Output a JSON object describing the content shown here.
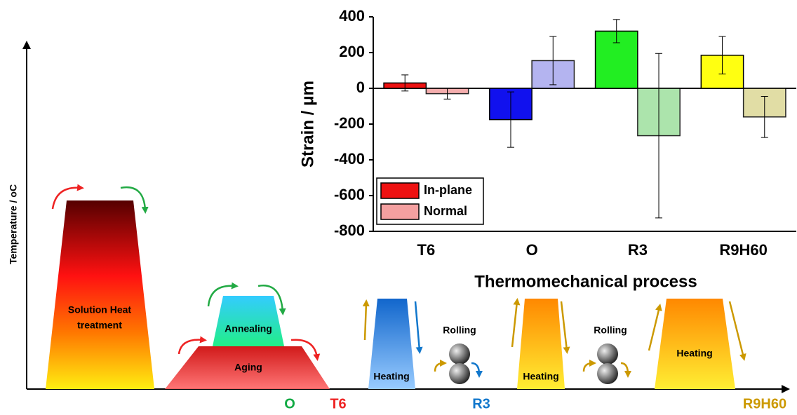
{
  "chart_data": {
    "type": "bar",
    "categories": [
      "T6",
      "O",
      "R3",
      "R9H60"
    ],
    "series": [
      {
        "name": "In-plane",
        "color": "#ee1111",
        "colors": [
          "#ee1111",
          "#1111ee",
          "#22ee22",
          "#ffff11"
        ],
        "values": [
          30,
          -175,
          320,
          185
        ],
        "errors": [
          45,
          155,
          65,
          105
        ]
      },
      {
        "name": "Normal",
        "color": "#f4a0a0",
        "colors": [
          "#f4a0a0",
          "#a8a8ee",
          "#9ee09e",
          "#dcd896"
        ],
        "values": [
          -30,
          155,
          -265,
          -160
        ],
        "errors": [
          30,
          135,
          460,
          115
        ]
      }
    ],
    "ylabel": "Strain / μm",
    "xlabel": "Thermomechanical process",
    "ylim": [
      -800,
      400
    ],
    "yticks": [
      -800,
      -600,
      -400,
      -200,
      0,
      200,
      400
    ]
  },
  "diagram": {
    "ylabel": "Temperature / oC",
    "steps": {
      "solution": [
        "Solution Heat",
        "treatment"
      ],
      "annealing": "Annealing",
      "aging": "Aging",
      "heating": [
        "Heating",
        "Heating",
        "Heating"
      ],
      "rolling": [
        "Rolling",
        "Rolling"
      ]
    },
    "stages": [
      "O",
      "T6",
      "R3",
      "R9H60"
    ]
  }
}
